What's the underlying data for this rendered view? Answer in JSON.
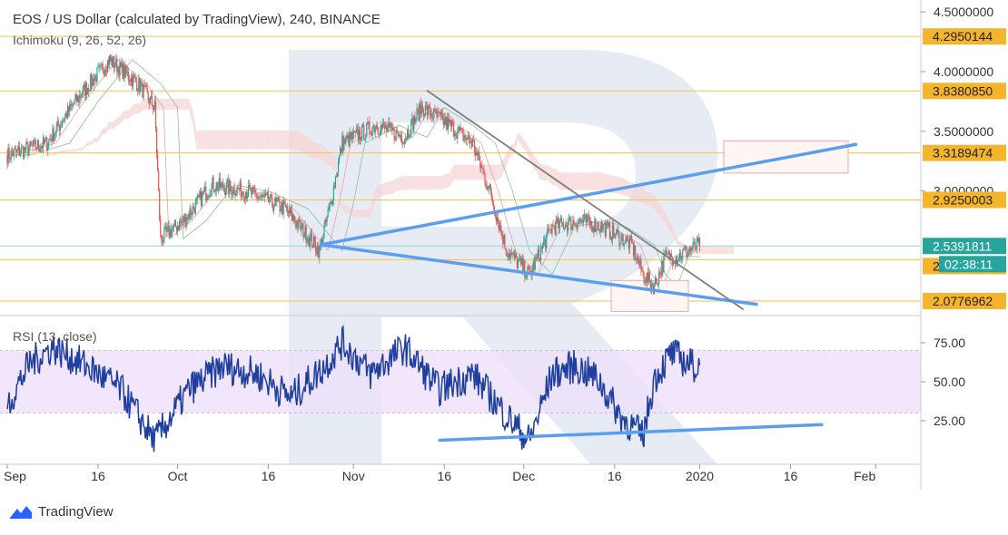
{
  "header": {
    "title": "EOS / US Dollar (calculated by TradingView), 240, BINANCE",
    "indicator": "Ichimoku (9, 26, 52, 26)"
  },
  "rsi_panel": {
    "label": "RSI (13, close)"
  },
  "footer": {
    "brand": "TradingView",
    "logo_icon": "tradingview-logo-icon"
  },
  "colors": {
    "candle_up": "#26a69a",
    "candle_down": "#ef5350",
    "trendline_blue": "#5b9ef0",
    "trendline_gray": "#7f7f7f",
    "level_line": "#f5c24d",
    "level_tag": "#f5b52b",
    "current_price_tag": "#26a69a",
    "rsi_line": "#1f3f9f",
    "rsi_band": "#ede0fb",
    "cloud_green": "#cfe9d5",
    "cloud_red": "#f7d6d6",
    "watermark": "#dde4f0"
  },
  "chart_data": [
    {
      "type": "candlestick",
      "title": "EOS / US Dollar (calculated by TradingView), 240, BINANCE",
      "x_ticks": [
        "Sep",
        "16",
        "Oct",
        "16",
        "Nov",
        "16",
        "Dec",
        "16",
        "2020",
        "16",
        "Feb"
      ],
      "y_ticks": [
        "4.5000000",
        "4.0000000",
        "3.5000000",
        "3.0000000"
      ],
      "ylim": [
        1.95,
        4.55
      ],
      "price_series": {
        "anchors": [
          [
            0,
            3.3
          ],
          [
            7,
            3.4
          ],
          [
            12,
            3.75
          ],
          [
            18,
            4.1
          ],
          [
            23,
            3.9
          ],
          [
            26,
            3.7
          ],
          [
            27,
            2.6
          ],
          [
            31,
            2.75
          ],
          [
            36,
            3.05
          ],
          [
            42,
            3.0
          ],
          [
            49,
            2.85
          ],
          [
            55,
            2.5
          ],
          [
            57,
            2.9
          ],
          [
            59,
            3.4
          ],
          [
            65,
            3.55
          ],
          [
            70,
            3.45
          ],
          [
            73,
            3.7
          ],
          [
            78,
            3.55
          ],
          [
            82,
            3.4
          ],
          [
            85,
            3.0
          ],
          [
            88,
            2.5
          ],
          [
            92,
            2.3
          ],
          [
            96,
            2.7
          ],
          [
            101,
            2.75
          ],
          [
            105,
            2.7
          ],
          [
            110,
            2.55
          ],
          [
            112,
            2.3
          ],
          [
            114,
            2.2
          ],
          [
            116,
            2.45
          ],
          [
            118,
            2.45
          ],
          [
            122,
            2.55
          ]
        ],
        "last_value": 2.5391811
      },
      "levels": [
        4.2950144,
        3.838085,
        3.3189474,
        2.9250003,
        2.5391811,
        2.4241256,
        2.0776962
      ],
      "level_labels": [
        "4.2950144",
        "3.8380850",
        "3.3189474",
        "2.9250003",
        "2.5391811",
        "2.4241256",
        "2.0776962"
      ],
      "countdown": "02:38:11",
      "grid": false,
      "legend": "none"
    },
    {
      "type": "line",
      "title": "RSI (13, close)",
      "y_ticks": [
        "75.00",
        "50.00",
        "25.00"
      ],
      "ylim": [
        0,
        100
      ],
      "band": [
        30,
        70
      ],
      "anchors": [
        [
          0,
          35
        ],
        [
          4,
          62
        ],
        [
          8,
          72
        ],
        [
          14,
          60
        ],
        [
          20,
          45
        ],
        [
          26,
          12
        ],
        [
          32,
          45
        ],
        [
          38,
          60
        ],
        [
          44,
          55
        ],
        [
          50,
          40
        ],
        [
          56,
          60
        ],
        [
          59,
          75
        ],
        [
          64,
          55
        ],
        [
          70,
          72
        ],
        [
          76,
          45
        ],
        [
          82,
          55
        ],
        [
          88,
          28
        ],
        [
          92,
          12
        ],
        [
          96,
          55
        ],
        [
          100,
          60
        ],
        [
          104,
          52
        ],
        [
          108,
          28
        ],
        [
          112,
          15
        ],
        [
          114,
          52
        ],
        [
          117,
          68
        ],
        [
          122,
          58
        ]
      ]
    }
  ]
}
